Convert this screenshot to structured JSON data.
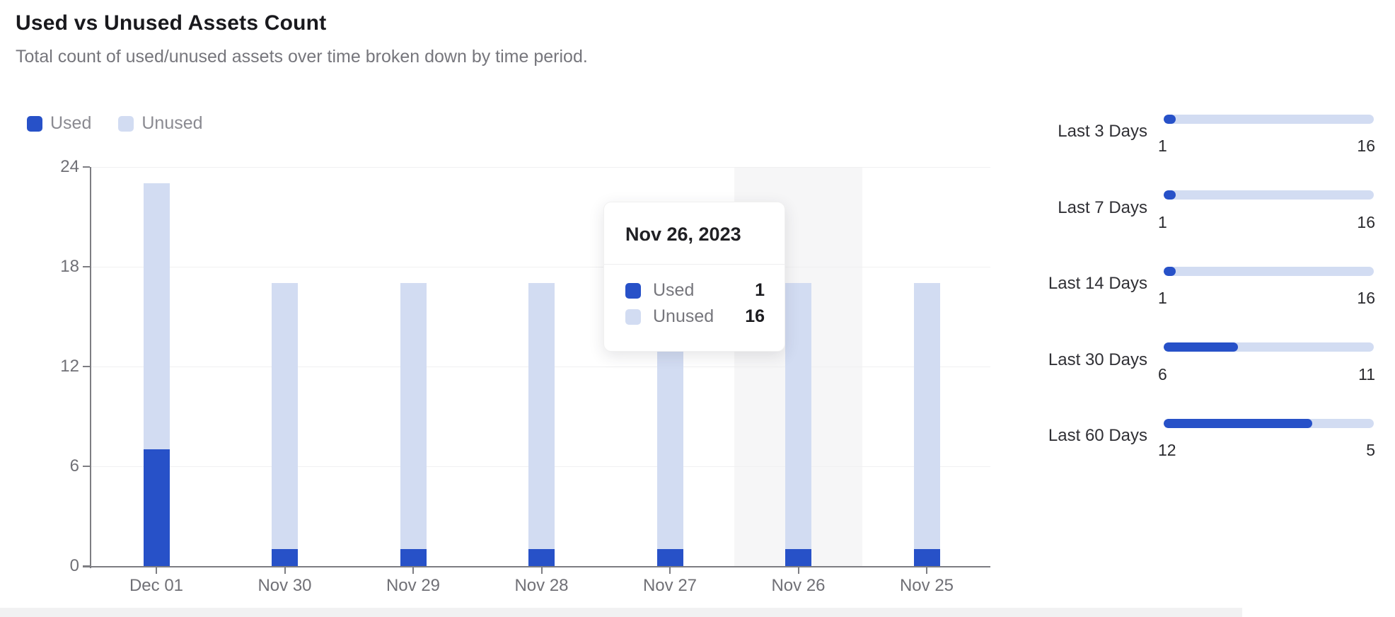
{
  "header": {
    "title": "Used vs Unused Assets Count",
    "subtitle": "Total count of used/unused assets over time broken down by time period."
  },
  "colors": {
    "used": "#2751c8",
    "unused": "#d2dcf2",
    "hover_band": "#f6f6f7"
  },
  "legend": {
    "items": [
      {
        "label": "Used",
        "color": "#2751c8"
      },
      {
        "label": "Unused",
        "color": "#d2dcf2"
      }
    ]
  },
  "chart_data": {
    "type": "bar",
    "stacked": true,
    "title": "Used vs Unused Assets Count",
    "categories": [
      "Dec 01",
      "Nov 30",
      "Nov 29",
      "Nov 28",
      "Nov 27",
      "Nov 26",
      "Nov 25"
    ],
    "series": [
      {
        "name": "Used",
        "color": "#2751c8",
        "values": [
          7,
          1,
          1,
          1,
          1,
          1,
          1
        ]
      },
      {
        "name": "Unused",
        "color": "#d2dcf2",
        "values": [
          16,
          16,
          16,
          16,
          16,
          16,
          16
        ]
      }
    ],
    "xlabel": "",
    "ylabel": "",
    "ylim": [
      0,
      24
    ],
    "yticks": [
      0,
      6,
      12,
      18,
      24
    ],
    "grid": true,
    "legend_position": "top-left",
    "highlighted_category": "Nov 26"
  },
  "tooltip": {
    "title": "Nov 26, 2023",
    "rows": [
      {
        "label": "Used",
        "value": "1",
        "color": "#2751c8"
      },
      {
        "label": "Unused",
        "value": "16",
        "color": "#d2dcf2"
      }
    ]
  },
  "side_panel": {
    "rows": [
      {
        "label": "Last 3 Days",
        "used": 1,
        "unused": 16
      },
      {
        "label": "Last 7 Days",
        "used": 1,
        "unused": 16
      },
      {
        "label": "Last 14 Days",
        "used": 1,
        "unused": 16
      },
      {
        "label": "Last 30 Days",
        "used": 6,
        "unused": 11
      },
      {
        "label": "Last 60 Days",
        "used": 12,
        "unused": 5
      }
    ]
  }
}
